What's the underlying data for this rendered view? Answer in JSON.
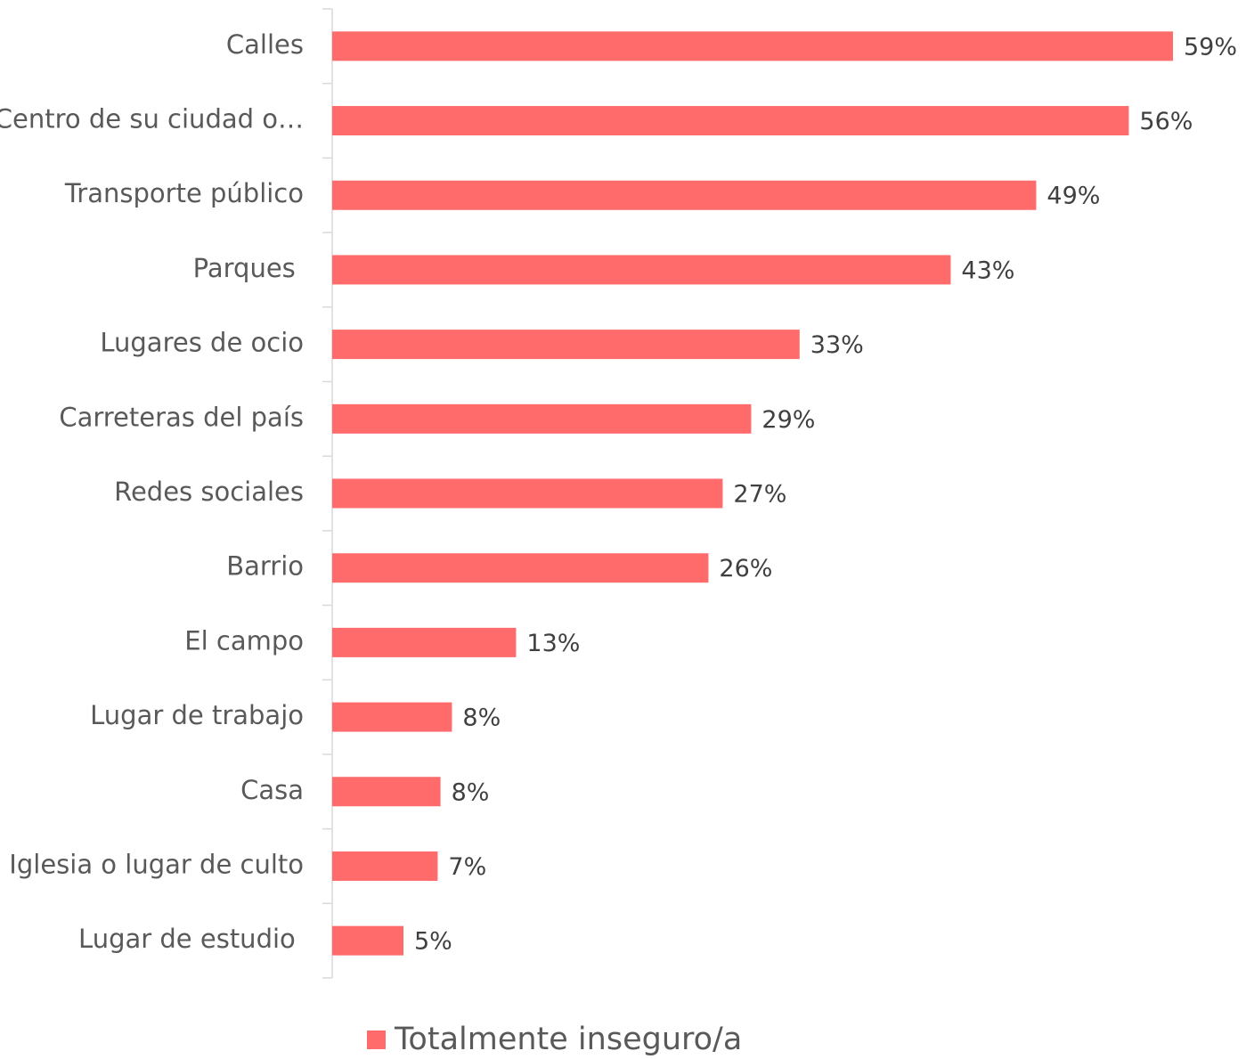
{
  "chart_data": {
    "type": "bar",
    "orientation": "horizontal",
    "categories": [
      "Calles",
      "Centro de su ciudad o…",
      "Transporte público",
      "Parques ",
      "Lugares de ocio",
      "Carreteras del país",
      "Redes sociales",
      "Barrio",
      "El campo",
      "Lugar de trabajo",
      "Casa",
      "Iglesia o lugar de culto",
      "Lugar de estudio "
    ],
    "series": [
      {
        "name": "Totalmente inseguro/a",
        "color": "#ff6b6b",
        "values": [
          59,
          55.9,
          49.4,
          43.4,
          32.8,
          29.4,
          27.4,
          26.4,
          12.9,
          8.4,
          7.6,
          7.4,
          5.0
        ],
        "value_labels": [
          "59%",
          "56%",
          "49%",
          "43%",
          "33%",
          "29%",
          "27%",
          "26%",
          "13%",
          "8%",
          "8%",
          "7%",
          "5%"
        ]
      }
    ],
    "xlim": [
      0,
      64
    ],
    "legend": "bottom"
  }
}
